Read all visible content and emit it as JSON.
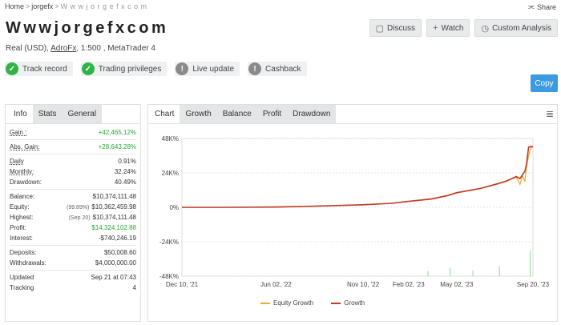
{
  "breadcrumb": {
    "home": "Home",
    "user": "jorgefx",
    "current": "W w w j o r g e f x c o m"
  },
  "share_label": "Share",
  "title": "Wwwjorgefxcom",
  "subtitle": {
    "account": "Real (USD),",
    "broker": "AdroFx",
    "rest": ", 1:500 , MetaTrader 4"
  },
  "actions": {
    "discuss": "Discuss",
    "watch": "Watch",
    "custom": "Custom Analysis",
    "copy": "Copy"
  },
  "features": [
    {
      "label": "Track record",
      "status": "on"
    },
    {
      "label": "Trading privileges",
      "status": "on"
    },
    {
      "label": "Live update",
      "status": "off"
    },
    {
      "label": "Cashback",
      "status": "off"
    }
  ],
  "info_tabs": [
    "Info",
    "Stats",
    "General"
  ],
  "stats": {
    "gain": {
      "label": "Gain :",
      "value": "+42,465.12%"
    },
    "abs_gain": {
      "label": "Abs. Gain:",
      "value": "+28,643.28%"
    },
    "daily": {
      "label": "Daily",
      "value": "0.91%"
    },
    "monthly": {
      "label": "Monthly:",
      "value": "32.24%"
    },
    "drawdown": {
      "label": "Drawdown:",
      "value": "40.49%"
    },
    "balance": {
      "label": "Balance:",
      "value": "$10,374,111.48"
    },
    "equity": {
      "label": "Equity:",
      "note": "(99.89%)",
      "value": "$10,362,459.98"
    },
    "highest": {
      "label": "Highest:",
      "note": "(Sep 20)",
      "value": "$10,374,111.48"
    },
    "profit": {
      "label": "Profit:",
      "value": "$14,324,102.88"
    },
    "interest": {
      "label": "Interest:",
      "value": "-$740,246.19"
    },
    "deposits": {
      "label": "Deposits:",
      "value": "$50,008.60"
    },
    "withdrawals": {
      "label": "Withdrawals:",
      "value": "$4,000,000.00"
    },
    "updated": {
      "label": "Updated",
      "value": "Sep 21 at 07:43"
    },
    "tracking": {
      "label": "Tracking",
      "value": "4"
    }
  },
  "chart_tabs": [
    "Chart",
    "Growth",
    "Balance",
    "Profit",
    "Drawdown"
  ],
  "colors": {
    "growth": "#c0392b",
    "equity": "#f0a830",
    "volume": "#a8dca8",
    "accent": "#3b9be0",
    "positive": "#27a737"
  },
  "chart_data": {
    "type": "line",
    "ylabel": "",
    "xlabel": "",
    "y_ticks": [
      "48K%",
      "24K%",
      "0%",
      "-24K%",
      "-48K%"
    ],
    "x_ticks": [
      "Dec 10, '21",
      "Jun 02, '22",
      "Nov 10, '22",
      "Feb 02, '23",
      "May 02, '23",
      "Sep 20, '23"
    ],
    "ylim": [
      -48000,
      48000
    ],
    "x_dates": [
      "2021-12-10",
      "2022-03-01",
      "2022-06-02",
      "2022-09-01",
      "2022-11-10",
      "2023-01-01",
      "2023-02-02",
      "2023-03-15",
      "2023-04-15",
      "2023-05-02",
      "2023-06-15",
      "2023-07-15",
      "2023-08-01",
      "2023-08-20",
      "2023-08-27",
      "2023-09-01",
      "2023-09-05",
      "2023-09-08",
      "2023-09-12",
      "2023-09-16",
      "2023-09-20"
    ],
    "series": [
      {
        "name": "Equity Growth",
        "values": [
          0,
          0,
          0,
          1000,
          1800,
          2800,
          4000,
          5500,
          8000,
          10000,
          13000,
          16000,
          18000,
          21000,
          16000,
          22000,
          18000,
          28000,
          36000,
          41500,
          42000
        ]
      },
      {
        "name": "Growth",
        "values": [
          0,
          0,
          200,
          1000,
          1800,
          2800,
          4200,
          5800,
          8200,
          10200,
          13200,
          16300,
          18200,
          21500,
          20000,
          23000,
          25000,
          30000,
          42000,
          42400,
          42465
        ]
      }
    ],
    "volume_spikes": [
      {
        "date": "2023-03-10",
        "value": 3500
      },
      {
        "date": "2023-04-20",
        "value": 6000
      },
      {
        "date": "2023-06-01",
        "value": 4000
      },
      {
        "date": "2023-07-20",
        "value": 7000
      },
      {
        "date": "2023-09-15",
        "value": 18000
      }
    ]
  }
}
